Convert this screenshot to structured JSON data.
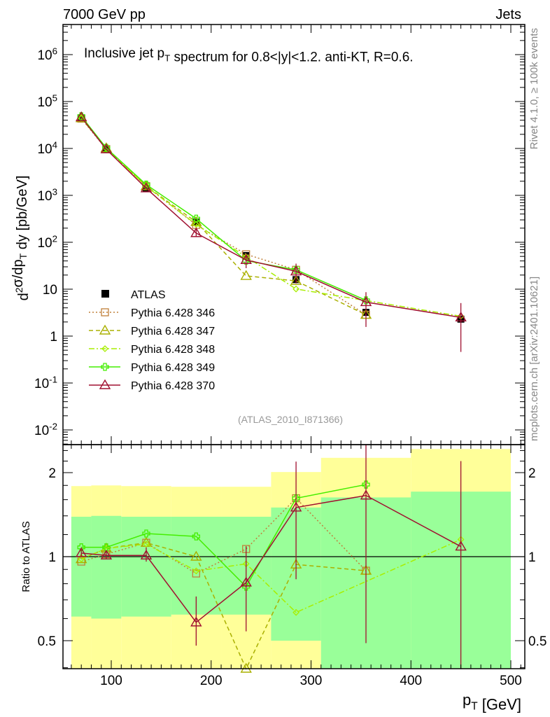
{
  "header": {
    "left": "7000 GeV pp",
    "right": "Jets"
  },
  "side_labels": {
    "rivet": "Rivet 4.1.0, ≥ 100k events",
    "mcplots": "mcplots.cern.ch [arXiv:2401.10621]"
  },
  "chart_data": [
    {
      "type": "line",
      "title": "Inclusive jet p_T spectrum for 0.8<|y|<1.2.  anti-KT, R=0.6.",
      "ylabel": "d²σ/dp_T dy [pb/GeV]",
      "xlabel": "p_T [GeV]",
      "annotation": "(ATLAS_2010_I871366)",
      "xlim": [
        52,
        514
      ],
      "ylim": [
        0.0049,
        4400000
      ],
      "yscale": "log",
      "ytick_labels": [
        "10^6",
        "10^5",
        "10^4",
        "10^3",
        "10^2",
        "10",
        "1",
        "10^-1",
        "10^-2"
      ],
      "ytick_values": [
        1000000,
        100000,
        10000,
        1000,
        100,
        10,
        1,
        0.1,
        0.01
      ],
      "legend_position": "middle-left",
      "x": [
        70,
        95,
        135,
        185,
        235,
        285,
        355,
        450
      ],
      "bins": [
        60,
        80,
        110,
        160,
        210,
        260,
        310,
        400,
        500
      ],
      "series": [
        {
          "name": "ATLAS",
          "color": "#000000",
          "style": "data",
          "values": [
            45000,
            9500,
            1400,
            270,
            52,
            16,
            3.2,
            2.3
          ]
        },
        {
          "name": "Pythia 6.428 346",
          "color": "#c0803a",
          "style": "dotted",
          "marker": "square",
          "values": [
            43200,
            9690,
            1570,
            235,
            55.4,
            25.9,
            2.85,
            null
          ]
        },
        {
          "name": "Pythia 6.428 347",
          "color": "#aab000",
          "style": "dashed",
          "marker": "triangle",
          "values": [
            44100,
            10165,
            1570,
            270,
            19.2,
            15,
            2.85,
            null
          ]
        },
        {
          "name": "Pythia 6.428 348",
          "color": "#a8ee00",
          "style": "dashdot",
          "marker": "diamond",
          "values": [
            44100,
            10165,
            1554,
            240,
            49,
            10.1,
            null,
            2.65
          ]
        },
        {
          "name": "Pythia 6.428 349",
          "color": "#44ee00",
          "style": "solid",
          "marker": "cross",
          "values": [
            48600,
            10260,
            1694,
            319,
            40.6,
            25.9,
            5.8,
            null
          ]
        },
        {
          "name": "Pythia 6.428 370",
          "color": "#a01030",
          "style": "solid",
          "marker": "triangle",
          "values": [
            46350,
            9595,
            1414,
            157,
            42,
            24,
            5.3,
            2.5
          ],
          "ratio_err": [
            [
              1.0,
              1.06
            ],
            [
              0.98,
              1.04
            ],
            [
              0.96,
              1.08
            ],
            [
              0.48,
              0.72
            ],
            [
              0.54,
              1.09
            ],
            [
              0.83,
              2.19
            ],
            [
              0.49,
              2.7
            ],
            [
              0.2,
              2.2
            ]
          ]
        }
      ]
    },
    {
      "type": "line",
      "ylabel": "Ratio to ATLAS",
      "xlabel": "p_T [GeV]",
      "xlim": [
        52,
        514
      ],
      "ylim": [
        0.397,
        2.52
      ],
      "yscale": "log",
      "ytick_labels": [
        "2",
        "1",
        "0.5"
      ],
      "ytick_values": [
        2,
        1,
        0.5
      ],
      "xtick_labels": [
        "100",
        "200",
        "300",
        "400",
        "500"
      ],
      "xtick_values": [
        100,
        200,
        300,
        400,
        500
      ],
      "band_colors": {
        "inner": "#99ff99",
        "outer": "#ffff99"
      },
      "band_inner": [
        [
          0.61,
          1.39
        ],
        [
          0.6,
          1.4
        ],
        [
          0.61,
          1.39
        ],
        [
          0.62,
          1.39
        ],
        [
          0.62,
          1.39
        ],
        [
          0.5,
          1.5
        ],
        [
          0.3,
          1.63
        ],
        [
          0.3,
          1.71
        ]
      ],
      "band_outer": [
        [
          0.3,
          1.79
        ],
        [
          0.3,
          1.8
        ],
        [
          0.3,
          1.79
        ],
        [
          0.3,
          1.78
        ],
        [
          0.3,
          1.78
        ],
        [
          0.3,
          2.01
        ],
        [
          0.3,
          2.26
        ],
        [
          0.3,
          2.43
        ]
      ]
    }
  ]
}
